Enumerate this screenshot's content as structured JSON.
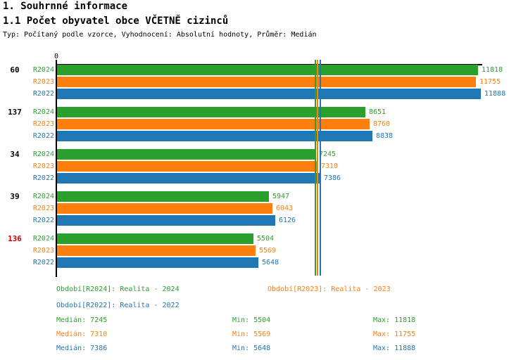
{
  "header": {
    "title1": "1. Souhrnné informace",
    "title2": "1.1 Počet obyvatel obce VČETNĚ cizinců",
    "subtitle": "Typ: Počítaný podle vzorce, Vyhodnocení: Absolutní hodnoty, Průměr: Medián"
  },
  "chart_data": {
    "type": "bar",
    "orientation": "horizontal",
    "title": "1.1 Počet obyvatel obce VČETNĚ cizinců",
    "origin_label": "0",
    "xlim": [
      0,
      11888
    ],
    "grid": false,
    "series": [
      {
        "name": "R2024",
        "color": "#2ca02c"
      },
      {
        "name": "R2023",
        "color": "#ff7f0e"
      },
      {
        "name": "R2022",
        "color": "#1f77b4"
      }
    ],
    "groups": [
      {
        "label": "60",
        "label_color": "#000000",
        "values": [
          11818,
          11755,
          11888
        ]
      },
      {
        "label": "137",
        "label_color": "#000000",
        "values": [
          8651,
          8760,
          8838
        ]
      },
      {
        "label": "34",
        "label_color": "#000000",
        "values": [
          7245,
          7310,
          7386
        ]
      },
      {
        "label": "39",
        "label_color": "#000000",
        "values": [
          5947,
          6043,
          6126
        ]
      },
      {
        "label": "136",
        "label_color": "#cc0000",
        "values": [
          5504,
          5569,
          5648
        ]
      }
    ],
    "medians": [
      7245,
      7310,
      7386
    ],
    "axis_color": "#000000"
  },
  "legend": {
    "items": [
      {
        "label": "Období[R2024]: Realita - 2024",
        "color": "#2ca02c"
      },
      {
        "label": "Období[R2023]: Realita - 2023",
        "color": "#ff7f0e"
      },
      {
        "label": "Období[R2022]: Realita - 2022",
        "color": "#1f77b4"
      }
    ]
  },
  "stats": {
    "rows": [
      {
        "median": "Medián: 7245",
        "min": "Min: 5504",
        "max": "Max: 11818",
        "color": "#2ca02c"
      },
      {
        "median": "Medián: 7310",
        "min": "Min: 5569",
        "max": "Max: 11755",
        "color": "#ff7f0e"
      },
      {
        "median": "Medián: 7386",
        "min": "Min: 5648",
        "max": "Max: 11888",
        "color": "#1f77b4"
      }
    ]
  }
}
